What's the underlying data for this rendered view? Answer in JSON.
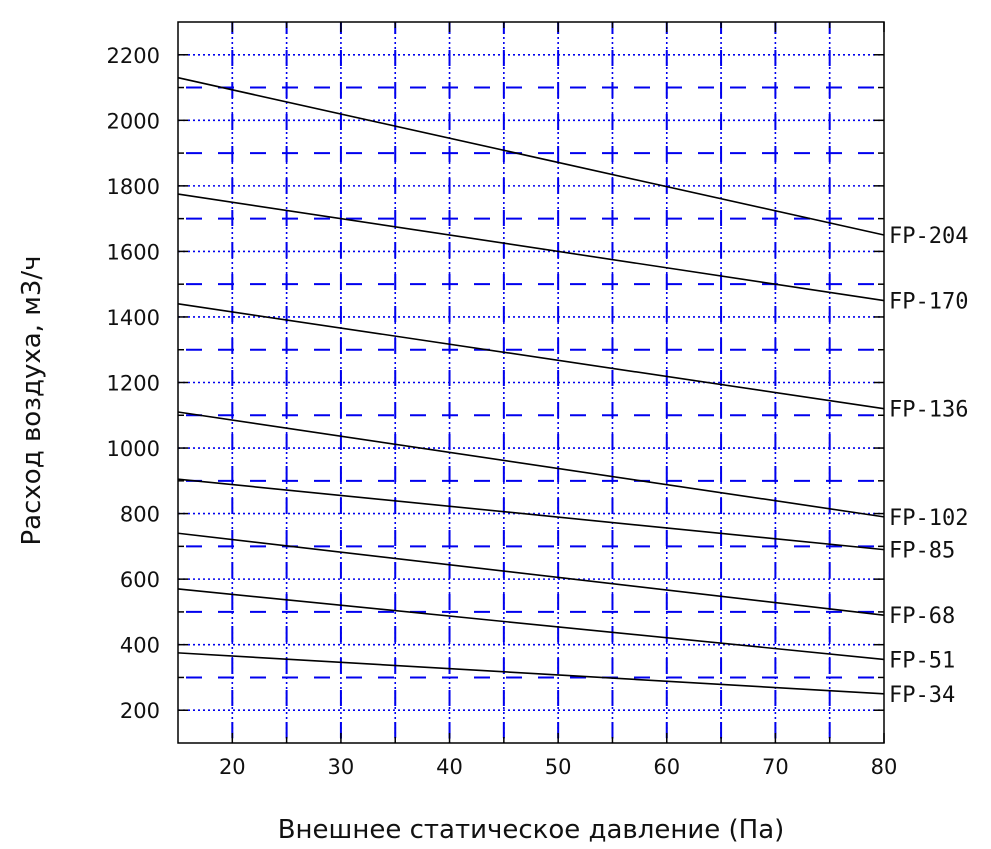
{
  "chart_data": {
    "type": "line",
    "title": "",
    "xlabel": "Внешнее статическое давление (Па)",
    "ylabel": "Расход воздуха, м3/ч",
    "xlim": [
      15,
      80
    ],
    "ylim": [
      100,
      2300
    ],
    "x_ticks": [
      20,
      30,
      40,
      50,
      60,
      70,
      80
    ],
    "y_ticks": [
      200,
      400,
      600,
      800,
      1000,
      1200,
      1400,
      1600,
      1800,
      2000,
      2200
    ],
    "grid": {
      "x_dotted_step": 5,
      "y_dotted_step": 100,
      "dashed_h_values": [
        300,
        500,
        700,
        900,
        1100,
        1300,
        1500,
        1700,
        1900,
        2100
      ]
    },
    "grid_color": "#0000ee",
    "line_color": "#000000",
    "series": [
      {
        "name": "FP-204",
        "x": [
          15,
          80
        ],
        "y": [
          2130,
          1650
        ]
      },
      {
        "name": "FP-170",
        "x": [
          15,
          80
        ],
        "y": [
          1775,
          1450
        ]
      },
      {
        "name": "FP-136",
        "x": [
          15,
          80
        ],
        "y": [
          1440,
          1120
        ]
      },
      {
        "name": "FP-102",
        "x": [
          15,
          80
        ],
        "y": [
          1110,
          790
        ]
      },
      {
        "name": "FP-85",
        "x": [
          15,
          80
        ],
        "y": [
          905,
          690
        ]
      },
      {
        "name": "FP-68",
        "x": [
          15,
          80
        ],
        "y": [
          740,
          490
        ]
      },
      {
        "name": "FP-51",
        "x": [
          15,
          80
        ],
        "y": [
          570,
          355
        ]
      },
      {
        "name": "FP-34",
        "x": [
          15,
          80
        ],
        "y": [
          375,
          250
        ]
      }
    ]
  }
}
